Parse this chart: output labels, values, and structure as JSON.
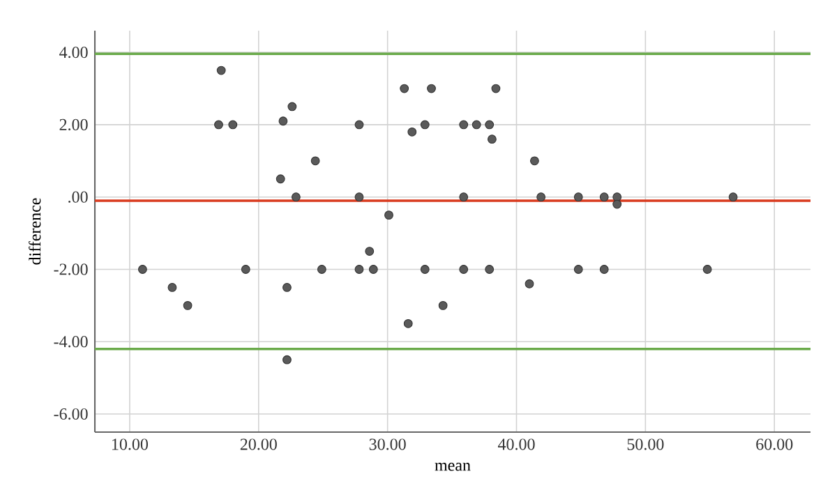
{
  "chart_data": {
    "type": "scatter",
    "xlabel": "mean",
    "ylabel": "difference",
    "x": [
      11.0,
      13.3,
      14.5,
      17.1,
      16.9,
      18.0,
      19.0,
      22.6,
      21.9,
      21.7,
      22.9,
      24.4,
      22.2,
      22.2,
      24.9,
      27.8,
      27.8,
      27.8,
      28.6,
      28.9,
      30.1,
      31.3,
      31.9,
      32.9,
      33.4,
      31.6,
      32.9,
      34.3,
      35.9,
      36.9,
      37.9,
      38.1,
      38.4,
      35.9,
      35.9,
      37.9,
      41.4,
      41.0,
      41.9,
      44.8,
      44.8,
      46.8,
      46.8,
      47.8,
      47.8,
      54.8,
      56.8
    ],
    "values": [
      -2,
      -2.5,
      -3,
      3.5,
      2,
      2,
      -2,
      2.5,
      2.1,
      0.5,
      0,
      1.0,
      -2.5,
      -4.5,
      -2,
      2,
      0,
      -2,
      -1.5,
      -2,
      -0.5,
      3,
      1.8,
      2,
      3,
      -3.5,
      -2,
      -3,
      2,
      2,
      2,
      1.6,
      3,
      0,
      -2,
      -2,
      1.0,
      -2.4,
      0,
      0,
      -2,
      0,
      -2,
      0,
      -0.2,
      -2,
      0
    ],
    "color": "#5a5a5a",
    "xlim": [
      7.3,
      62.8
    ],
    "ylim": [
      -6.5,
      4.6
    ],
    "xticks": [
      {
        "value": 10,
        "label": "10.00"
      },
      {
        "value": 20,
        "label": "20.00"
      },
      {
        "value": 30,
        "label": "30.00"
      },
      {
        "value": 40,
        "label": "40.00"
      },
      {
        "value": 50,
        "label": "50.00"
      },
      {
        "value": 60,
        "label": "60.00"
      }
    ],
    "yticks": [
      {
        "value": -6,
        "label": "-6.00"
      },
      {
        "value": -4,
        "label": "-4.00"
      },
      {
        "value": -2,
        "label": "-2.00"
      },
      {
        "value": 0,
        "label": ".00"
      },
      {
        "value": 2,
        "label": "2.00"
      },
      {
        "value": 4,
        "label": "4.00"
      }
    ],
    "grid": true,
    "ref_lines": [
      {
        "axis": "y",
        "value": 3.96,
        "color": "#6aaa4a"
      },
      {
        "axis": "y",
        "value": -0.1,
        "color": "#d93a1e"
      },
      {
        "axis": "y",
        "value": -4.2,
        "color": "#6aaa4a"
      }
    ]
  }
}
